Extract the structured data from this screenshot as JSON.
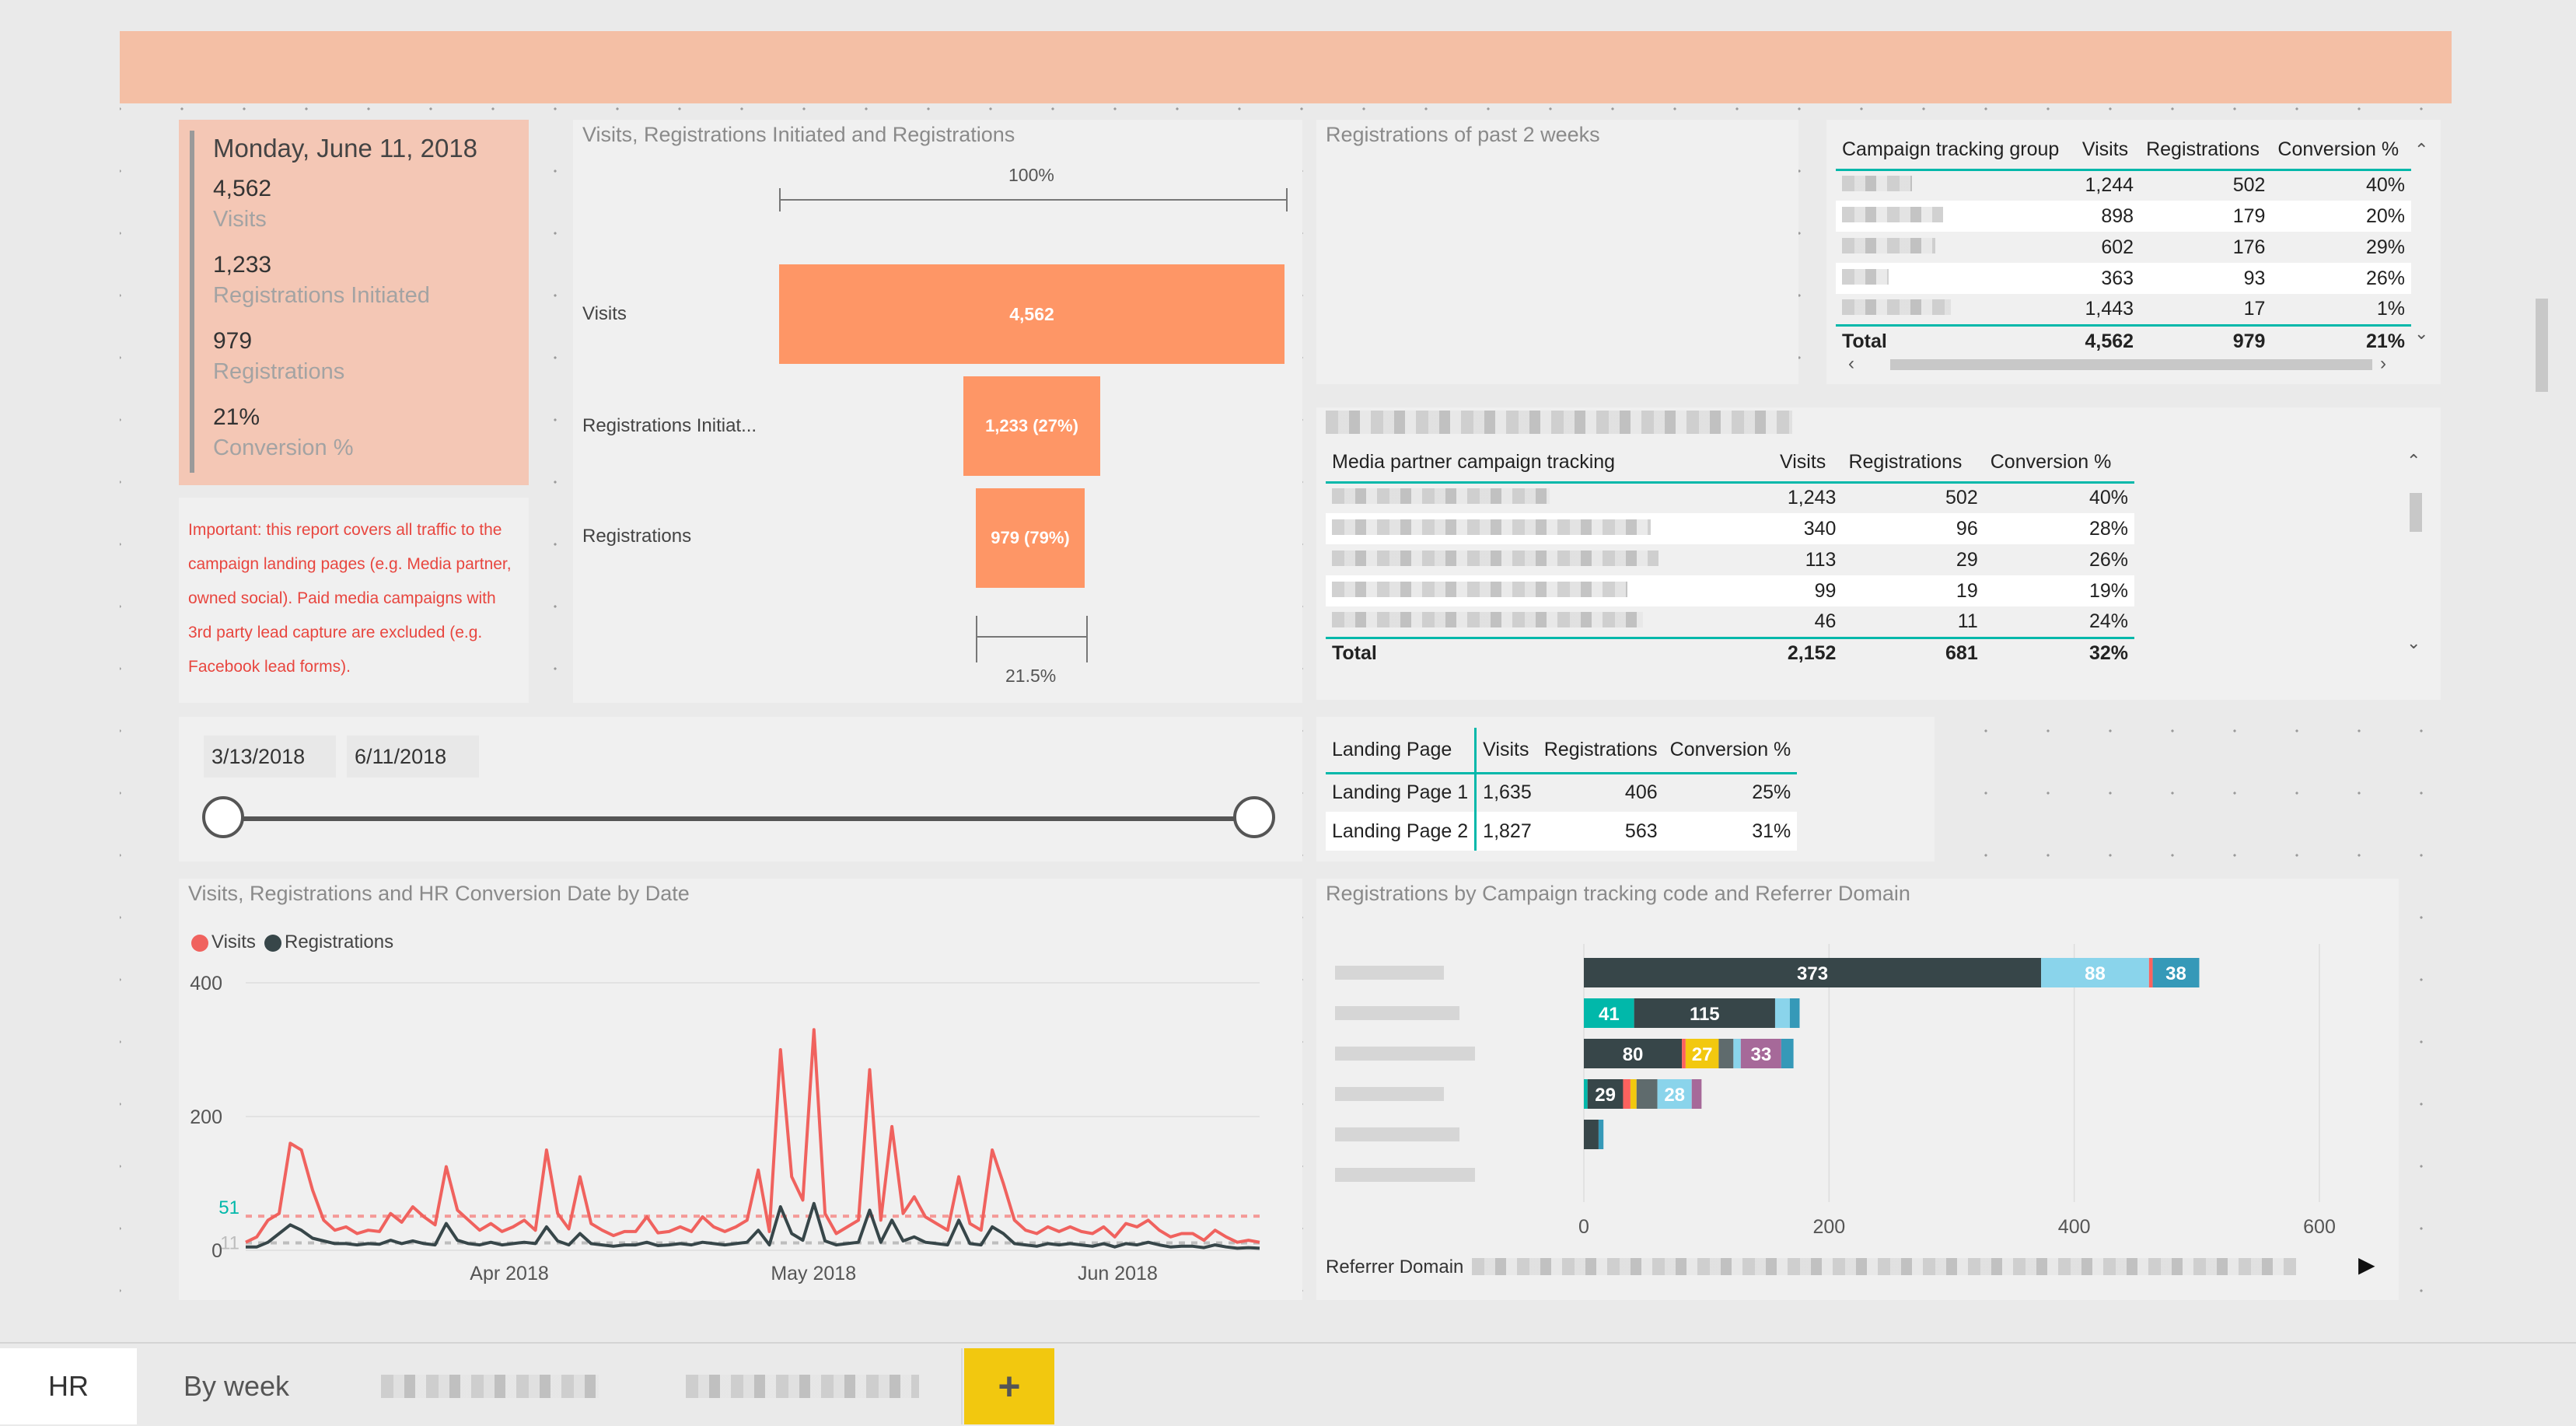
{
  "kpi": {
    "date": "Monday, June 11, 2018",
    "items": [
      {
        "value": "4,562",
        "label": "Visits"
      },
      {
        "value": "1,233",
        "label": "Registrations Initiated"
      },
      {
        "value": "979",
        "label": "Registrations"
      },
      {
        "value": "21%",
        "label": "Conversion %"
      }
    ]
  },
  "note": "Important: this report covers all traffic to the campaign landing pages (e.g. Media partner, owned social). Paid media campaigns with 3rd party lead capture are excluded (e.g. Facebook lead forms).",
  "funnel": {
    "title": "Visits, Registrations Initiated and Registrations",
    "top_label": "100%",
    "bottom_label": "21.5%",
    "stages": [
      {
        "label": "Visits",
        "value": 4562,
        "text": "4,562"
      },
      {
        "label": "Registrations Initiat...",
        "value": 1233,
        "text": "1,233 (27%)"
      },
      {
        "label": "Registrations",
        "value": 979,
        "text": "979 (79%)"
      }
    ]
  },
  "past2weeks": {
    "title": "Registrations of past 2 weeks"
  },
  "campaign_table": {
    "headers": [
      "Campaign tracking group",
      "Visits",
      "Registrations",
      "Conversion %"
    ],
    "rows": [
      [
        "",
        "1,244",
        "502",
        "40%"
      ],
      [
        "",
        "898",
        "179",
        "20%"
      ],
      [
        "",
        "602",
        "176",
        "29%"
      ],
      [
        "",
        "363",
        "93",
        "26%"
      ],
      [
        "",
        "1,443",
        "17",
        "1%"
      ]
    ],
    "total": [
      "Total",
      "4,562",
      "979",
      "21%"
    ]
  },
  "media_table": {
    "headers": [
      "Media partner campaign tracking",
      "Visits",
      "Registrations",
      "Conversion %"
    ],
    "rows": [
      [
        "",
        "1,243",
        "502",
        "40%"
      ],
      [
        "",
        "340",
        "96",
        "28%"
      ],
      [
        "",
        "113",
        "29",
        "26%"
      ],
      [
        "",
        "99",
        "19",
        "19%"
      ],
      [
        "",
        "46",
        "11",
        "24%"
      ]
    ],
    "total": [
      "Total",
      "2,152",
      "681",
      "32%"
    ]
  },
  "slicer": {
    "start": "3/13/2018",
    "end": "6/11/2018"
  },
  "landing_table": {
    "headers": [
      "Landing Page",
      "Visits",
      "Registrations",
      "Conversion %"
    ],
    "rows": [
      [
        "Landing Page 1",
        "1,635",
        "406",
        "25%"
      ],
      [
        "Landing Page 2",
        "1,827",
        "563",
        "31%"
      ]
    ]
  },
  "chart_data": [
    {
      "type": "line",
      "title": "Visits, Registrations and HR Conversion Date by Date",
      "legend": [
        "Visits",
        "Registrations"
      ],
      "legend_position": "top-left",
      "ylim": [
        0,
        400
      ],
      "yticks": [
        "400",
        "200",
        "0"
      ],
      "x_tick_labels": [
        "Apr 2018",
        "May 2018",
        "Jun 2018"
      ],
      "x_range": [
        "2018-03-13",
        "2018-06-11"
      ],
      "reference_values": [
        {
          "label": "51",
          "value": 51
        },
        {
          "label": "11",
          "value": 11
        }
      ],
      "series": [
        {
          "name": "Visits",
          "color": "#f0625e",
          "values": [
            12,
            20,
            45,
            55,
            160,
            150,
            90,
            45,
            30,
            35,
            25,
            30,
            28,
            55,
            42,
            65,
            50,
            38,
            125,
            60,
            45,
            30,
            40,
            28,
            35,
            45,
            30,
            150,
            55,
            32,
            110,
            40,
            30,
            22,
            28,
            28,
            50,
            26,
            28,
            35,
            28,
            50,
            35,
            28,
            35,
            45,
            120,
            28,
            300,
            110,
            75,
            330,
            55,
            25,
            35,
            45,
            270,
            45,
            185,
            55,
            80,
            50,
            40,
            30,
            110,
            40,
            30,
            150,
            100,
            45,
            30,
            25,
            35,
            28,
            35,
            28,
            25,
            35,
            20,
            40,
            35,
            45,
            30,
            20,
            25,
            25,
            15,
            30,
            20,
            12,
            15,
            12
          ]
        },
        {
          "name": "Registrations",
          "color": "#374649",
          "values": [
            5,
            5,
            12,
            25,
            38,
            30,
            18,
            14,
            10,
            10,
            8,
            10,
            9,
            15,
            10,
            14,
            10,
            8,
            40,
            15,
            10,
            8,
            12,
            8,
            10,
            12,
            10,
            35,
            14,
            8,
            25,
            10,
            8,
            6,
            8,
            8,
            12,
            7,
            8,
            10,
            8,
            12,
            10,
            8,
            10,
            12,
            30,
            8,
            65,
            25,
            15,
            70,
            14,
            8,
            10,
            12,
            60,
            12,
            45,
            14,
            20,
            12,
            10,
            8,
            45,
            10,
            8,
            35,
            25,
            10,
            8,
            6,
            10,
            8,
            10,
            8,
            6,
            10,
            5,
            10,
            8,
            12,
            8,
            5,
            6,
            6,
            4,
            8,
            5,
            3,
            4,
            3
          ]
        }
      ]
    },
    {
      "type": "bar",
      "title": "Registrations by Campaign tracking code and Referrer Domain",
      "orientation": "horizontal",
      "stacked": true,
      "xlim": [
        0,
        600
      ],
      "xticks": [
        "0",
        "200",
        "400",
        "600"
      ],
      "legend_title": "Referrer Domain",
      "legend_position": "bottom",
      "rows": [
        {
          "segments": [
            {
              "value": 373,
              "color": "#374649",
              "label": "373"
            },
            {
              "value": 88,
              "color": "#8ad4eb",
              "label": "88"
            },
            {
              "value": 3,
              "color": "#fd625e",
              "label": ""
            },
            {
              "value": 38,
              "color": "#3599b8",
              "label": "38"
            }
          ]
        },
        {
          "segments": [
            {
              "value": 41,
              "color": "#01b8aa",
              "label": "41"
            },
            {
              "value": 115,
              "color": "#374649",
              "label": "115"
            },
            {
              "value": 12,
              "color": "#8ad4eb",
              "label": ""
            },
            {
              "value": 8,
              "color": "#3599b8",
              "label": ""
            }
          ]
        },
        {
          "segments": [
            {
              "value": 80,
              "color": "#374649",
              "label": "80"
            },
            {
              "value": 3,
              "color": "#fd625e",
              "label": ""
            },
            {
              "value": 27,
              "color": "#f2c80f",
              "label": "27"
            },
            {
              "value": 12,
              "color": "#5f6b6d",
              "label": ""
            },
            {
              "value": 6,
              "color": "#8ad4eb",
              "label": ""
            },
            {
              "value": 33,
              "color": "#a66999",
              "label": "33"
            },
            {
              "value": 10,
              "color": "#3599b8",
              "label": ""
            }
          ]
        },
        {
          "segments": [
            {
              "value": 3,
              "color": "#01b8aa",
              "label": ""
            },
            {
              "value": 29,
              "color": "#374649",
              "label": "29"
            },
            {
              "value": 6,
              "color": "#fd625e",
              "label": ""
            },
            {
              "value": 5,
              "color": "#f2c80f",
              "label": ""
            },
            {
              "value": 17,
              "color": "#5f6b6d",
              "label": ""
            },
            {
              "value": 28,
              "color": "#8ad4eb",
              "label": "28"
            },
            {
              "value": 8,
              "color": "#a66999",
              "label": ""
            }
          ]
        },
        {
          "segments": [
            {
              "value": 12,
              "color": "#374649",
              "label": ""
            },
            {
              "value": 4,
              "color": "#3599b8",
              "label": ""
            }
          ]
        },
        {
          "segments": []
        }
      ]
    }
  ],
  "tabs": {
    "t1": "HR",
    "t2": "By week",
    "add": "+"
  }
}
